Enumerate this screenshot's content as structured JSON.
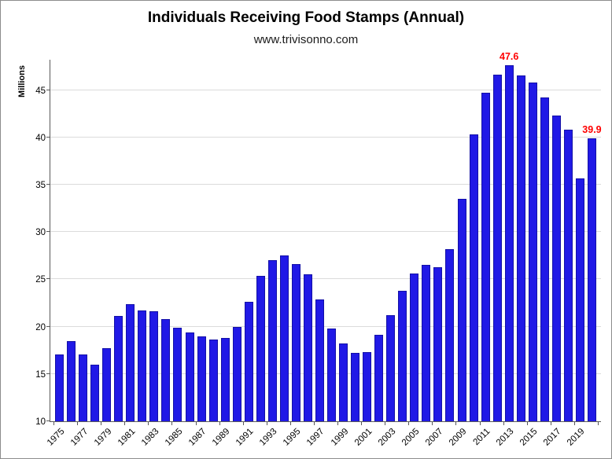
{
  "title": "Individuals Receiving Food Stamps (Annual)",
  "subtitle": "www.trivisonno.com",
  "chart_data": {
    "type": "bar",
    "title": "Individuals Receiving Food Stamps (Annual)",
    "subtitle": "www.trivisonno.com",
    "ylabel": "Millions",
    "xlabel": "",
    "x": [
      1975,
      1976,
      1977,
      1978,
      1979,
      1980,
      1981,
      1982,
      1983,
      1984,
      1985,
      1986,
      1987,
      1988,
      1989,
      1990,
      1991,
      1992,
      1993,
      1994,
      1995,
      1996,
      1997,
      1998,
      1999,
      2000,
      2001,
      2002,
      2003,
      2004,
      2005,
      2006,
      2007,
      2008,
      2009,
      2010,
      2011,
      2012,
      2013,
      2014,
      2015,
      2016,
      2017,
      2018,
      2019,
      2020
    ],
    "values": [
      17.1,
      18.5,
      17.1,
      16.0,
      17.7,
      21.1,
      22.4,
      21.7,
      21.6,
      20.8,
      19.9,
      19.4,
      19.0,
      18.6,
      18.8,
      20.0,
      22.6,
      25.4,
      27.0,
      27.5,
      26.6,
      25.5,
      22.9,
      19.8,
      18.2,
      17.2,
      17.3,
      19.1,
      21.2,
      23.8,
      25.6,
      26.5,
      26.3,
      28.2,
      33.5,
      40.3,
      44.7,
      46.6,
      47.6,
      46.5,
      45.8,
      44.2,
      42.3,
      40.8,
      35.7,
      39.9
    ],
    "x_tick_labels": [
      "1975",
      "1977",
      "1979",
      "1981",
      "1983",
      "1985",
      "1987",
      "1989",
      "1991",
      "1993",
      "1995",
      "1997",
      "1999",
      "2001",
      "2003",
      "2005",
      "2007",
      "2009",
      "2011",
      "2013",
      "2015",
      "2017",
      "2019"
    ],
    "y_ticks": [
      10,
      15,
      20,
      25,
      30,
      35,
      40,
      45
    ],
    "ylim": [
      10,
      48.2
    ],
    "grid": true,
    "legend": false,
    "annotations": [
      {
        "x": 2013,
        "text": "47.6"
      },
      {
        "x": 2020,
        "text": "39.9"
      }
    ],
    "colors": {
      "bar_fill": "#2019e6",
      "bar_border": "#1310a6",
      "annotation": "#ff0000",
      "gridline": "#dbdbdb",
      "axis": "#595959",
      "text": "#000000"
    }
  }
}
